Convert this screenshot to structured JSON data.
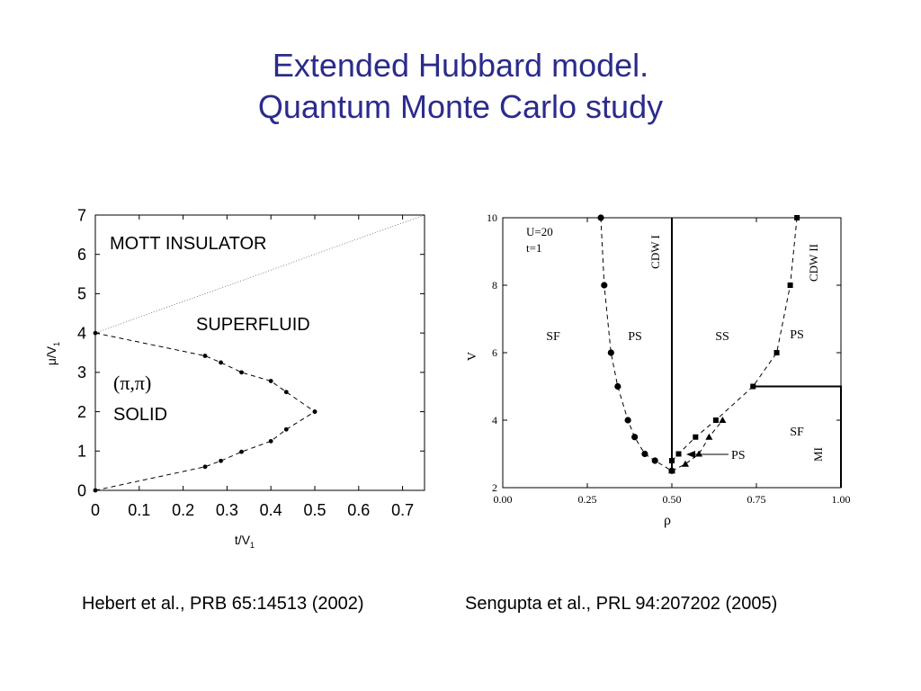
{
  "slide": {
    "title_line1": "Extended Hubbard model.",
    "title_line2": "Quantum Monte Carlo study"
  },
  "captions": {
    "left": "Hebert et al., PRB 65:14513 (2002)",
    "right": "Sengupta et al., PRL 94:207202 (2005)"
  },
  "chart_data": [
    {
      "type": "line",
      "xlabel": "t/V",
      "xlabel_sub": "1",
      "ylabel": "μ/V",
      "ylabel_sub": "1",
      "xlim": [
        0,
        0.75
      ],
      "ylim": [
        0,
        7
      ],
      "xticks": [
        "0",
        "0.1",
        "0.2",
        "0.3",
        "0.4",
        "0.5",
        "0.6",
        "0.7"
      ],
      "yticks": [
        "0",
        "1",
        "2",
        "3",
        "4",
        "5",
        "6",
        "7"
      ],
      "region_labels": [
        "MOTT INSULATOR",
        "SUPERFLUID",
        "(π,π)",
        "SOLID"
      ],
      "series": [
        {
          "style": "dashed",
          "marker": "dot",
          "x": [
            0,
            0.25,
            0.286,
            0.333,
            0.4,
            0.435,
            0.5
          ],
          "y": [
            4,
            3.42,
            3.25,
            3.0,
            2.78,
            2.5,
            2.0
          ]
        },
        {
          "style": "dashed",
          "marker": "dot",
          "x": [
            0,
            0.25,
            0.286,
            0.333,
            0.4,
            0.435,
            0.5
          ],
          "y": [
            0,
            0.6,
            0.75,
            0.98,
            1.25,
            1.55,
            2.0
          ]
        },
        {
          "style": "dotted",
          "marker": "none",
          "x": [
            0,
            0.75
          ],
          "y": [
            4,
            7
          ]
        }
      ]
    },
    {
      "type": "line",
      "xlabel": "ρ",
      "ylabel": "V",
      "xlim": [
        0,
        1.0
      ],
      "ylim": [
        2,
        10
      ],
      "xticks": [
        "0.00",
        "0.25",
        "0.50",
        "0.75",
        "1.00"
      ],
      "yticks": [
        "2",
        "4",
        "6",
        "8",
        "10"
      ],
      "params": [
        "U=20",
        "t=1"
      ],
      "region_labels": [
        "SF",
        "PS",
        "SS",
        "PS",
        "SF",
        "PS"
      ],
      "vertical_labels": [
        "CDW I",
        "CDW II",
        "MI"
      ],
      "series": [
        {
          "style": "dashed",
          "marker": "circle",
          "x": [
            0.29,
            0.3,
            0.32,
            0.34,
            0.37,
            0.39,
            0.42,
            0.45,
            0.5
          ],
          "y": [
            10,
            8,
            6,
            5,
            4,
            3.5,
            3,
            2.8,
            2.5
          ]
        },
        {
          "style": "dashed",
          "marker": "square",
          "x": [
            0.5,
            0.52,
            0.57,
            0.63,
            0.74,
            0.81,
            0.85,
            0.87
          ],
          "y": [
            2.8,
            3.0,
            3.5,
            4.0,
            5.0,
            6.0,
            8.0,
            10.0
          ]
        },
        {
          "style": "dashed",
          "marker": "triangle",
          "x": [
            0.5,
            0.54,
            0.58,
            0.61,
            0.65
          ],
          "y": [
            2.5,
            2.7,
            3.0,
            3.5,
            4.0
          ]
        },
        {
          "style": "solid",
          "marker": "none",
          "x": [
            0.5,
            0.5
          ],
          "y": [
            2.5,
            10
          ]
        },
        {
          "style": "solid",
          "marker": "none",
          "x": [
            0.74,
            1.0,
            1.0
          ],
          "y": [
            5,
            5,
            2
          ]
        },
        {
          "style": "dashed",
          "marker": "none",
          "x": [
            1.0,
            1.0
          ],
          "y": [
            5,
            10
          ]
        }
      ]
    }
  ]
}
